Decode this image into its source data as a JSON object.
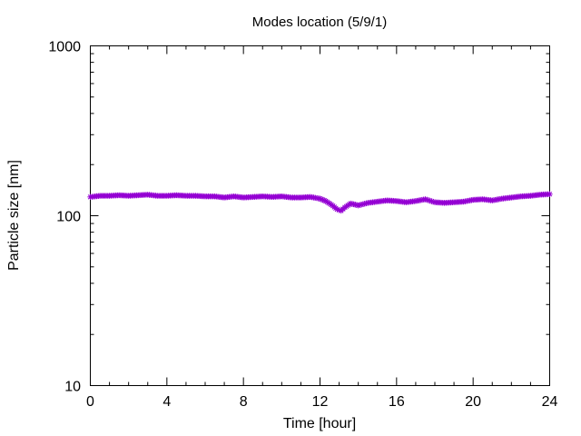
{
  "chart_data": {
    "type": "scatter",
    "title": "Modes location (5/9/1)",
    "xlabel": "Time [hour]",
    "ylabel": "Particle size [nm]",
    "xlim": [
      0,
      24
    ],
    "ylim": [
      10,
      1000
    ],
    "yscale": "log",
    "grid": false,
    "legend": "none",
    "x_ticks": [
      0,
      4,
      8,
      12,
      16,
      20,
      24
    ],
    "y_ticks": [
      10,
      100,
      1000
    ],
    "x_tick_labels": [
      "0",
      "4",
      "8",
      "12",
      "16",
      "20",
      "24"
    ],
    "y_tick_labels": [
      "10",
      "100",
      "1000"
    ],
    "series": [
      {
        "color": "#9400d3",
        "marker": "star",
        "x": [
          0.0,
          0.5,
          1.0,
          1.5,
          2.0,
          2.5,
          3.0,
          3.5,
          4.0,
          4.5,
          5.0,
          5.5,
          6.0,
          6.5,
          7.0,
          7.5,
          8.0,
          8.5,
          9.0,
          9.5,
          10.0,
          10.5,
          11.0,
          11.5,
          12.0,
          12.3,
          12.6,
          12.9,
          13.1,
          13.3,
          13.6,
          14.0,
          14.5,
          15.0,
          15.5,
          16.0,
          16.5,
          17.0,
          17.5,
          18.0,
          18.5,
          19.0,
          19.5,
          20.0,
          20.5,
          21.0,
          21.5,
          22.0,
          22.5,
          23.0,
          23.5,
          24.0
        ],
        "y": [
          129,
          131,
          131,
          132,
          131,
          132,
          133,
          131,
          131,
          132,
          131,
          131,
          130,
          130,
          128,
          130,
          128,
          129,
          130,
          129,
          130,
          128,
          128,
          129,
          126,
          122,
          116,
          109,
          107,
          112,
          118,
          115,
          119,
          121,
          123,
          122,
          120,
          122,
          125,
          120,
          119,
          120,
          121,
          124,
          125,
          123,
          126,
          128,
          130,
          131,
          133,
          134
        ]
      }
    ]
  }
}
